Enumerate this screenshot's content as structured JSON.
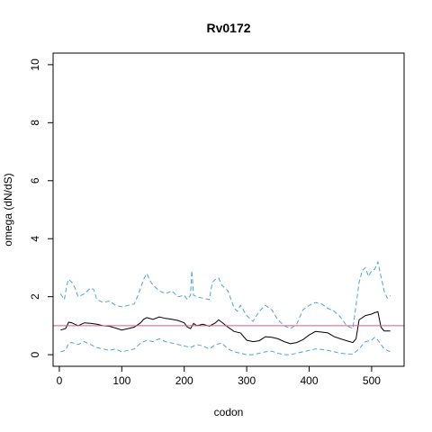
{
  "chart_data": {
    "type": "line",
    "title": "Rv0172",
    "xlabel": "codon",
    "ylabel": "omega (dN/dS)",
    "xlim": [
      -10,
      552
    ],
    "ylim": [
      -0.4,
      10.4
    ],
    "xticks": [
      0,
      100,
      200,
      300,
      400,
      500
    ],
    "yticks": [
      0,
      2,
      4,
      6,
      8,
      10
    ],
    "grid": false,
    "reference_line": {
      "y": 1,
      "color": "#d65a8a"
    },
    "series": [
      {
        "role": "estimate",
        "style": "solid",
        "color": "#000000",
        "x": [
          2,
          10,
          15,
          20,
          30,
          40,
          50,
          60,
          70,
          80,
          90,
          100,
          110,
          120,
          130,
          135,
          140,
          150,
          160,
          170,
          180,
          190,
          200,
          205,
          210,
          215,
          220,
          230,
          240,
          250,
          255,
          260,
          270,
          280,
          290,
          300,
          310,
          320,
          330,
          340,
          350,
          360,
          370,
          380,
          390,
          400,
          410,
          420,
          430,
          440,
          450,
          460,
          470,
          475,
          480,
          490,
          500,
          505,
          510,
          515,
          520,
          530
        ],
        "y": [
          0.85,
          0.9,
          1.12,
          1.1,
          1.0,
          1.1,
          1.08,
          1.05,
          1.0,
          0.98,
          0.92,
          0.85,
          0.9,
          0.95,
          1.1,
          1.22,
          1.28,
          1.22,
          1.3,
          1.25,
          1.22,
          1.18,
          1.1,
          0.95,
          0.9,
          1.08,
          1.0,
          1.05,
          0.98,
          1.1,
          1.2,
          1.12,
          0.95,
          0.8,
          0.75,
          0.5,
          0.45,
          0.48,
          0.62,
          0.6,
          0.55,
          0.45,
          0.38,
          0.42,
          0.52,
          0.68,
          0.8,
          0.78,
          0.75,
          0.62,
          0.55,
          0.48,
          0.42,
          0.55,
          1.2,
          1.35,
          1.4,
          1.45,
          1.48,
          0.95,
          0.82,
          0.82
        ]
      },
      {
        "role": "upper",
        "style": "dashed",
        "color": "#4aa3df",
        "x": [
          2,
          8,
          12,
          15,
          20,
          25,
          30,
          40,
          50,
          55,
          60,
          70,
          80,
          90,
          100,
          110,
          120,
          125,
          130,
          135,
          140,
          145,
          150,
          160,
          170,
          180,
          190,
          200,
          205,
          210,
          212,
          215,
          220,
          230,
          240,
          245,
          250,
          255,
          260,
          270,
          280,
          285,
          290,
          300,
          310,
          320,
          330,
          340,
          350,
          360,
          370,
          380,
          390,
          400,
          410,
          420,
          430,
          440,
          450,
          460,
          470,
          480,
          485,
          490,
          495,
          500,
          505,
          510,
          515,
          520,
          525,
          530
        ],
        "y": [
          2.1,
          1.9,
          2.4,
          2.6,
          2.5,
          2.3,
          2.0,
          2.1,
          2.3,
          2.25,
          1.9,
          1.8,
          1.85,
          1.7,
          1.65,
          1.7,
          1.75,
          2.0,
          2.3,
          2.6,
          2.8,
          2.55,
          2.4,
          2.2,
          2.1,
          2.2,
          2.0,
          2.05,
          1.9,
          2.05,
          2.9,
          2.05,
          2.0,
          1.95,
          1.9,
          2.5,
          2.6,
          2.65,
          2.4,
          2.2,
          1.6,
          1.5,
          1.7,
          1.35,
          1.15,
          1.5,
          1.7,
          1.55,
          1.2,
          1.0,
          0.9,
          1.05,
          1.55,
          1.7,
          1.8,
          1.75,
          1.6,
          1.5,
          1.3,
          1.0,
          0.9,
          2.5,
          2.9,
          3.0,
          2.7,
          2.9,
          2.95,
          3.2,
          2.7,
          2.2,
          1.95,
          2.05
        ]
      },
      {
        "role": "lower",
        "style": "dashed",
        "color": "#4aa3df",
        "x": [
          2,
          10,
          15,
          20,
          30,
          40,
          50,
          60,
          70,
          80,
          90,
          100,
          110,
          120,
          130,
          140,
          150,
          160,
          170,
          180,
          190,
          200,
          210,
          220,
          230,
          240,
          250,
          260,
          270,
          280,
          290,
          300,
          310,
          320,
          330,
          340,
          350,
          360,
          370,
          380,
          390,
          400,
          410,
          420,
          430,
          440,
          450,
          460,
          470,
          480,
          490,
          500,
          505,
          510,
          520,
          530
        ],
        "y": [
          0.1,
          0.15,
          0.4,
          0.42,
          0.35,
          0.45,
          0.35,
          0.25,
          0.2,
          0.15,
          0.2,
          0.1,
          0.15,
          0.2,
          0.4,
          0.5,
          0.45,
          0.55,
          0.45,
          0.4,
          0.35,
          0.3,
          0.25,
          0.35,
          0.3,
          0.2,
          0.35,
          0.4,
          0.2,
          0.1,
          0.05,
          0.0,
          0.0,
          0.05,
          0.1,
          0.12,
          0.05,
          0.0,
          0.0,
          0.05,
          0.1,
          0.15,
          0.2,
          0.18,
          0.15,
          0.1,
          0.05,
          0.03,
          0.02,
          0.2,
          0.45,
          0.5,
          0.6,
          0.5,
          0.2,
          0.1
        ]
      }
    ]
  }
}
